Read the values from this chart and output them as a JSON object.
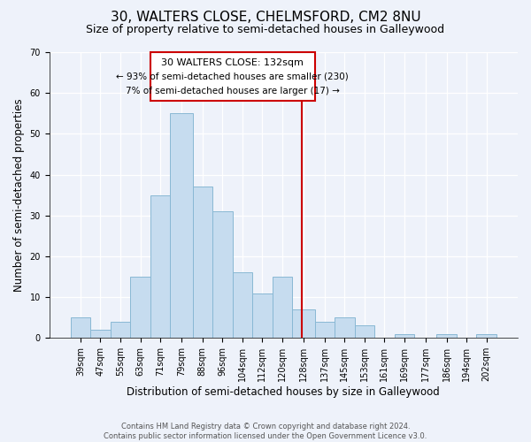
{
  "title": "30, WALTERS CLOSE, CHELMSFORD, CM2 8NU",
  "subtitle": "Size of property relative to semi-detached houses in Galleywood",
  "xlabel": "Distribution of semi-detached houses by size in Galleywood",
  "ylabel": "Number of semi-detached properties",
  "bin_labels": [
    "39sqm",
    "47sqm",
    "55sqm",
    "63sqm",
    "71sqm",
    "79sqm",
    "88sqm",
    "96sqm",
    "104sqm",
    "112sqm",
    "120sqm",
    "128sqm",
    "137sqm",
    "145sqm",
    "153sqm",
    "161sqm",
    "169sqm",
    "177sqm",
    "186sqm",
    "194sqm",
    "202sqm"
  ],
  "bin_edges": [
    39,
    47,
    55,
    63,
    71,
    79,
    88,
    96,
    104,
    112,
    120,
    128,
    137,
    145,
    153,
    161,
    169,
    177,
    186,
    194,
    202
  ],
  "bar_heights": [
    5,
    2,
    4,
    15,
    35,
    55,
    37,
    31,
    16,
    11,
    15,
    7,
    4,
    5,
    3,
    0,
    1,
    0,
    1,
    0,
    1
  ],
  "bar_color": "#c6dcef",
  "bar_edge_color": "#89b8d4",
  "property_value": 132,
  "property_label": "30 WALTERS CLOSE: 132sqm",
  "pct_smaller": 93,
  "count_smaller": 230,
  "pct_larger": 7,
  "count_larger": 17,
  "vline_color": "#cc0000",
  "box_edge_color": "#cc0000",
  "ylim": [
    0,
    70
  ],
  "yticks": [
    0,
    10,
    20,
    30,
    40,
    50,
    60,
    70
  ],
  "footer_line1": "Contains HM Land Registry data © Crown copyright and database right 2024.",
  "footer_line2": "Contains public sector information licensed under the Open Government Licence v3.0.",
  "background_color": "#eef2fa",
  "title_fontsize": 11,
  "subtitle_fontsize": 9,
  "tick_fontsize": 7,
  "ylabel_fontsize": 8.5,
  "xlabel_fontsize": 8.5,
  "annotation_fontsize": 8,
  "annotation_small_fontsize": 7.5
}
